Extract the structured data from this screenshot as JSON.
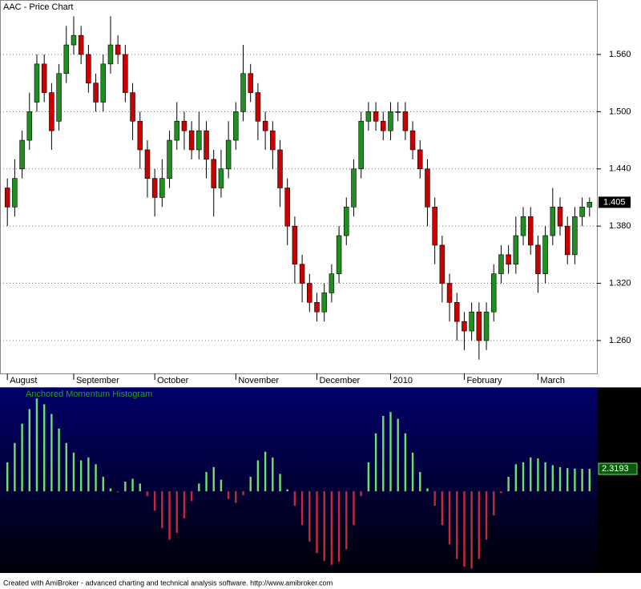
{
  "chart_data": [
    {
      "type": "candlestick",
      "title": "AAC - Price Chart",
      "open": [
        1.42,
        1.4,
        1.44,
        1.47,
        1.51,
        1.55,
        1.52,
        1.49,
        1.54,
        1.57,
        1.58,
        1.56,
        1.53,
        1.51,
        1.55,
        1.57,
        1.56,
        1.52,
        1.49,
        1.46,
        1.43,
        1.41,
        1.43,
        1.47,
        1.49,
        1.48,
        1.46,
        1.48,
        1.45,
        1.42,
        1.44,
        1.47,
        1.5,
        1.54,
        1.52,
        1.49,
        1.48,
        1.46,
        1.42,
        1.38,
        1.34,
        1.32,
        1.3,
        1.29,
        1.31,
        1.33,
        1.37,
        1.4,
        1.44,
        1.49,
        1.5,
        1.49,
        1.48,
        1.5,
        1.5,
        1.48,
        1.46,
        1.44,
        1.4,
        1.36,
        1.32,
        1.3,
        1.28,
        1.27,
        1.29,
        1.26,
        1.29,
        1.33,
        1.35,
        1.34,
        1.37,
        1.39,
        1.36,
        1.33,
        1.37,
        1.4,
        1.38,
        1.35,
        1.39,
        1.4
      ],
      "high": [
        1.43,
        1.45,
        1.48,
        1.52,
        1.56,
        1.56,
        1.53,
        1.55,
        1.59,
        1.6,
        1.59,
        1.57,
        1.54,
        1.56,
        1.6,
        1.58,
        1.57,
        1.53,
        1.5,
        1.47,
        1.44,
        1.45,
        1.48,
        1.51,
        1.5,
        1.49,
        1.5,
        1.49,
        1.46,
        1.46,
        1.49,
        1.51,
        1.57,
        1.55,
        1.53,
        1.5,
        1.49,
        1.47,
        1.43,
        1.39,
        1.35,
        1.33,
        1.31,
        1.32,
        1.34,
        1.38,
        1.41,
        1.45,
        1.5,
        1.51,
        1.51,
        1.5,
        1.51,
        1.51,
        1.51,
        1.49,
        1.47,
        1.45,
        1.41,
        1.37,
        1.33,
        1.31,
        1.29,
        1.3,
        1.3,
        1.3,
        1.34,
        1.36,
        1.36,
        1.39,
        1.4,
        1.4,
        1.37,
        1.38,
        1.42,
        1.41,
        1.39,
        1.4,
        1.41,
        1.41
      ],
      "low": [
        1.38,
        1.39,
        1.43,
        1.46,
        1.5,
        1.51,
        1.46,
        1.48,
        1.53,
        1.56,
        1.55,
        1.52,
        1.5,
        1.5,
        1.54,
        1.55,
        1.51,
        1.47,
        1.44,
        1.41,
        1.39,
        1.4,
        1.42,
        1.46,
        1.46,
        1.45,
        1.45,
        1.43,
        1.39,
        1.41,
        1.43,
        1.46,
        1.49,
        1.51,
        1.47,
        1.46,
        1.44,
        1.4,
        1.36,
        1.32,
        1.3,
        1.29,
        1.28,
        1.28,
        1.3,
        1.32,
        1.36,
        1.39,
        1.43,
        1.48,
        1.48,
        1.47,
        1.47,
        1.49,
        1.47,
        1.45,
        1.43,
        1.38,
        1.34,
        1.3,
        1.28,
        1.26,
        1.25,
        1.26,
        1.24,
        1.25,
        1.28,
        1.32,
        1.33,
        1.33,
        1.36,
        1.35,
        1.31,
        1.32,
        1.36,
        1.37,
        1.34,
        1.34,
        1.38,
        1.39
      ],
      "close": [
        1.4,
        1.43,
        1.47,
        1.5,
        1.55,
        1.52,
        1.48,
        1.54,
        1.57,
        1.58,
        1.56,
        1.53,
        1.51,
        1.55,
        1.57,
        1.56,
        1.52,
        1.49,
        1.46,
        1.43,
        1.41,
        1.43,
        1.47,
        1.49,
        1.48,
        1.46,
        1.48,
        1.45,
        1.42,
        1.44,
        1.47,
        1.5,
        1.54,
        1.52,
        1.49,
        1.48,
        1.46,
        1.42,
        1.38,
        1.34,
        1.32,
        1.3,
        1.29,
        1.31,
        1.33,
        1.37,
        1.4,
        1.44,
        1.49,
        1.5,
        1.49,
        1.48,
        1.5,
        1.5,
        1.48,
        1.46,
        1.44,
        1.4,
        1.36,
        1.32,
        1.3,
        1.28,
        1.27,
        1.29,
        1.26,
        1.29,
        1.33,
        1.35,
        1.34,
        1.37,
        1.39,
        1.36,
        1.33,
        1.37,
        1.4,
        1.38,
        1.35,
        1.39,
        1.4,
        1.405
      ],
      "up_color": "#1f8f1f",
      "down_color": "#cc0000",
      "xlim": [
        -1,
        80
      ],
      "xticks": [
        {
          "value": 0,
          "label": "August"
        },
        {
          "value": 9,
          "label": "September"
        },
        {
          "value": 20,
          "label": "October"
        },
        {
          "value": 31,
          "label": "November"
        },
        {
          "value": 42,
          "label": "December"
        },
        {
          "value": 52,
          "label": "2010"
        },
        {
          "value": 62,
          "label": "February"
        },
        {
          "value": 72,
          "label": "March"
        }
      ],
      "ylim": [
        1.2255,
        1.6171
      ],
      "yticks": [
        {
          "value": 1.26,
          "label": "1.260"
        },
        {
          "value": 1.32,
          "label": "1.320"
        },
        {
          "value": 1.38,
          "label": "1.380"
        },
        {
          "value": 1.44,
          "label": "1.440"
        },
        {
          "value": 1.5,
          "label": "1.500"
        },
        {
          "value": 1.56,
          "label": "1.560"
        }
      ],
      "grid": true
    },
    {
      "type": "histogram-bars",
      "title": "Anchored Momentum Histogram",
      "values": [
        3,
        5,
        7,
        8.5,
        9.6,
        9,
        8,
        6.5,
        5,
        4,
        3.2,
        3.5,
        2.8,
        1.5,
        0.3,
        -0.1,
        1.0,
        1.3,
        0.8,
        -0.5,
        -2,
        -3.8,
        -5,
        -4.3,
        -2.8,
        -1,
        0.8,
        2,
        2.5,
        1.2,
        -0.8,
        -1.2,
        -0.4,
        1.5,
        3.2,
        4.1,
        3.5,
        1.8,
        0.2,
        -1.5,
        -3.5,
        -5.2,
        -6.4,
        -7.2,
        -7.6,
        -7.3,
        -6,
        -3.5,
        -0.5,
        3,
        6,
        7.8,
        8.2,
        7.5,
        6,
        4,
        2,
        0.3,
        -1.5,
        -3.5,
        -5.5,
        -7,
        -7.8,
        -8,
        -7,
        -5,
        -2.5,
        -0.2,
        1.5,
        2.8,
        3,
        3.5,
        3.4,
        3.0,
        2.7,
        2.5,
        2.4,
        2.35,
        2.33,
        2.3193
      ],
      "positive_color": "#6ee06e",
      "negative_color": "#c8283a",
      "xlim": [
        -1,
        80
      ],
      "ylim": [
        -8.45,
        10.7
      ]
    }
  ],
  "footer": "Created with AmiBroker - advanced charting and technical analysis software. http://www.amibroker.com"
}
